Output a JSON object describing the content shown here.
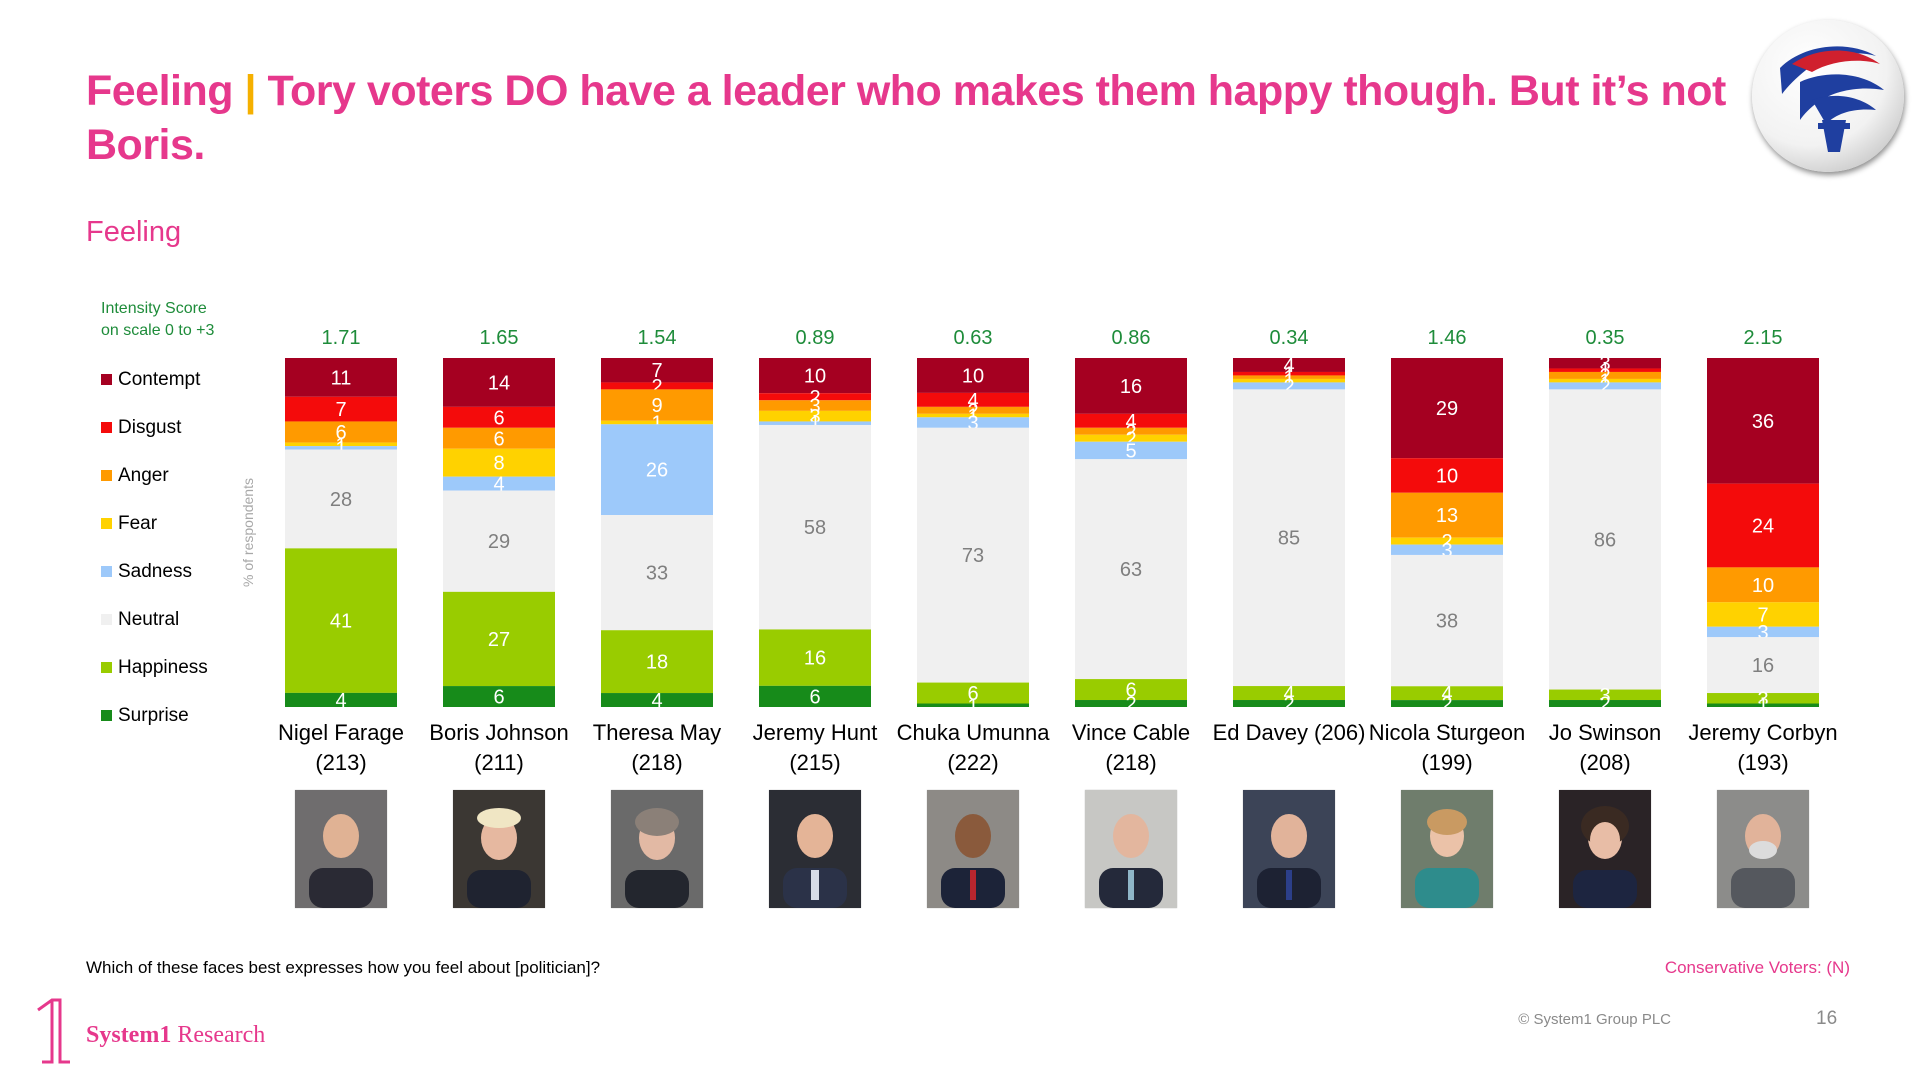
{
  "title": {
    "lead": "Feeling",
    "separator": "|",
    "text": "Tory voters DO have a leader who makes them happy though. But it’s not Boris."
  },
  "section_heading": "Feeling",
  "legend": {
    "title_line1": "Intensity Score",
    "title_line2": "on scale 0 to +3",
    "items": [
      "Contempt",
      "Disgust",
      "Anger",
      "Fear",
      "Sadness",
      "Neutral",
      "Happiness",
      "Surprise"
    ]
  },
  "chart_data": {
    "type": "bar",
    "stacked": true,
    "title": "Feeling",
    "ylabel": "% of respondents",
    "ylim": [
      0,
      100
    ],
    "grid": false,
    "legend": "left",
    "categories": [
      "Nigel Farage (213)",
      "Boris Johnson (211)",
      "Theresa May (218)",
      "Jeremy Hunt (215)",
      "Chuka Umunna (222)",
      "Vince Cable (218)",
      "Ed Davey (206)",
      "Nicola Sturgeon (199)",
      "Jo Swinson (208)",
      "Jeremy Corbyn (193)"
    ],
    "intensity_scores": [
      "1.71",
      "1.65",
      "1.54",
      "0.89",
      "0.63",
      "0.86",
      "0.34",
      "1.46",
      "0.35",
      "2.15"
    ],
    "series": [
      {
        "name": "Contempt",
        "color": "#A50021",
        "values": [
          11,
          14,
          7,
          10,
          10,
          16,
          4,
          29,
          3,
          36
        ]
      },
      {
        "name": "Disgust",
        "color": "#F40B0B",
        "values": [
          7,
          6,
          2,
          2,
          4,
          4,
          1,
          10,
          1,
          24
        ]
      },
      {
        "name": "Anger",
        "color": "#FF9A00",
        "values": [
          6,
          6,
          9,
          3,
          2,
          2,
          1,
          13,
          2,
          10
        ]
      },
      {
        "name": "Fear",
        "color": "#FFD200",
        "values": [
          1,
          8,
          1,
          3,
          1,
          2,
          1,
          2,
          1,
          7
        ]
      },
      {
        "name": "Sadness",
        "color": "#9DC9FA",
        "values": [
          1,
          4,
          26,
          1,
          3,
          5,
          2,
          3,
          2,
          3
        ]
      },
      {
        "name": "Neutral",
        "color": "#F0F0F0",
        "values": [
          28,
          29,
          33,
          58,
          73,
          63,
          85,
          38,
          86,
          16
        ]
      },
      {
        "name": "Happiness",
        "color": "#99CC00",
        "values": [
          41,
          27,
          18,
          16,
          6,
          6,
          4,
          4,
          3,
          3
        ]
      },
      {
        "name": "Surprise",
        "color": "#178B1A",
        "values": [
          4,
          6,
          4,
          6,
          1,
          2,
          2,
          2,
          2,
          1
        ]
      }
    ]
  },
  "politicians": [
    {
      "name": "Nigel Farage",
      "n": "(213)"
    },
    {
      "name": "Boris Johnson",
      "n": "(211)"
    },
    {
      "name": "Theresa May",
      "n": "(218)"
    },
    {
      "name": "Jeremy Hunt",
      "n": "(215)"
    },
    {
      "name": "Chuka Umunna",
      "n": "(222)"
    },
    {
      "name": "Vince Cable",
      "n": "(218)"
    },
    {
      "name": "Ed Davey (206)",
      "n": ""
    },
    {
      "name": "Nicola Sturgeon",
      "n": "(199)"
    },
    {
      "name": "Jo Swinson",
      "n": "(208)"
    },
    {
      "name": "Jeremy Corbyn",
      "n": "(193)"
    }
  ],
  "colors": {
    "accent": "#E6388C",
    "score": "#1E8C3A",
    "separator": "#F5B000"
  },
  "footer": {
    "question": "Which of these faces best expresses how you feel about [politician]?",
    "sample": "Conservative Voters: (N)",
    "copyright": "© System1 Group PLC",
    "page": "16",
    "brand_bold": "System1",
    "brand_rest": " Research"
  }
}
